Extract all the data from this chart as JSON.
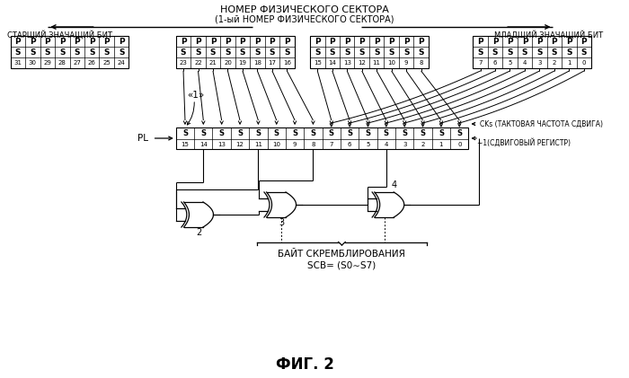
{
  "title": "ФИГ. 2",
  "top_title1": "НОМЕР ФИЗИЧЕСКОГО СЕКТОРА",
  "top_title2": "(1-ый НОМЕР ФИЗИЧЕСКОГО СЕКТОРА)",
  "left_label": "СТАРШИЙ ЗНАЧАЩИЙ БИТ",
  "right_label": "МЛАДШИЙ ЗНАЧАЩИЙ БИТ",
  "pl_label": "PL",
  "one_label": "«1»",
  "cks_label": "CKs (ТАКТОВАЯ ЧАСТОТА СДВИГА)",
  "tilde_label": "∼1(СДВИГОВЫЙ РЕГИСТР)",
  "scramble_label1": "БАЙТ СКРЕМБЛИРОВАНИЯ",
  "scramble_label2": "SCB= (S0∼S7)",
  "gate2_label": "2",
  "gate3_label": "3",
  "gate4_label": "4",
  "bg_color": "#ffffff"
}
